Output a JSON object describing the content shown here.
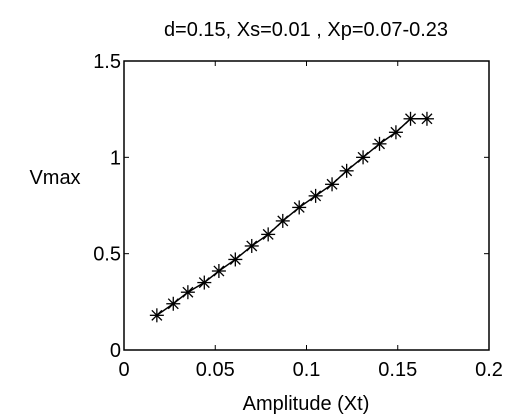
{
  "chart_data": {
    "type": "line",
    "title": "d=0.15, Xs=0.01 , Xp=0.07-0.23",
    "xlabel": "Amplitude (Xt)",
    "ylabel": "Vmax",
    "xlim": [
      0,
      0.2
    ],
    "ylim": [
      0,
      1.5
    ],
    "xticks": [
      0,
      0.05,
      0.1,
      0.15,
      0.2
    ],
    "xtick_labels": [
      "0",
      "0.05",
      "0.1",
      "0.15",
      "0.2"
    ],
    "yticks": [
      0,
      0.5,
      1,
      1.5
    ],
    "ytick_labels": [
      "0",
      "0.5",
      "1",
      "1.5"
    ],
    "grid": false,
    "series": [
      {
        "marker": "asterisk",
        "color": "#000000",
        "x": [
          0.018,
          0.027,
          0.035,
          0.044,
          0.052,
          0.061,
          0.07,
          0.079,
          0.087,
          0.096,
          0.105,
          0.114,
          0.122,
          0.131,
          0.14,
          0.149,
          0.157,
          0.166
        ],
        "y": [
          0.18,
          0.24,
          0.3,
          0.35,
          0.41,
          0.47,
          0.54,
          0.6,
          0.67,
          0.74,
          0.8,
          0.86,
          0.93,
          1.0,
          1.07,
          1.13,
          1.2,
          1.2
        ]
      }
    ]
  }
}
